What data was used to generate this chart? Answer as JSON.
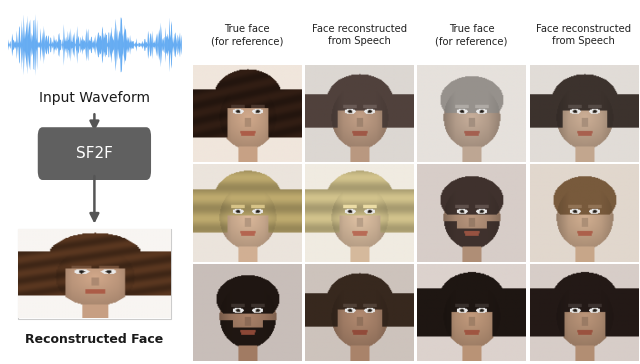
{
  "background_color": "#ffffff",
  "left_panel": {
    "waveform_color_primary": "#2288ee",
    "waveform_color_light": "#aaccff",
    "input_label": "Input Waveform",
    "box_label": "SF2F",
    "box_color": "#606060",
    "box_text_color": "#ffffff",
    "reconstructed_label": "Reconstructed Face",
    "arrow_color": "#555555"
  },
  "right_panel": {
    "col_headers": [
      "True face\n(for reference)",
      "Face reconstructed\nfrom Speech",
      "True face\n(for reference)",
      "Face reconstructed\nfrom Speech"
    ],
    "n_rows": 3,
    "n_cols": 4
  },
  "faces": [
    {
      "skin": [
        210,
        170,
        140
      ],
      "hair": [
        50,
        30,
        20
      ],
      "bg": [
        240,
        230,
        220
      ],
      "gender": "f",
      "hair_style": "long_dark"
    },
    {
      "skin": [
        195,
        160,
        135
      ],
      "hair": [
        80,
        65,
        60
      ],
      "bg": [
        220,
        215,
        210
      ],
      "gender": "f",
      "hair_style": "medium_dark"
    },
    {
      "skin": [
        200,
        175,
        155
      ],
      "hair": [
        150,
        145,
        140
      ],
      "bg": [
        230,
        225,
        220
      ],
      "gender": "m",
      "hair_style": "short_gray"
    },
    {
      "skin": [
        205,
        175,
        150
      ],
      "hair": [
        60,
        50,
        45
      ],
      "bg": [
        225,
        220,
        215
      ],
      "gender": "m",
      "hair_style": "short_dark"
    },
    {
      "skin": [
        220,
        185,
        155
      ],
      "hair": [
        190,
        170,
        110
      ],
      "bg": [
        235,
        228,
        220
      ],
      "gender": "f",
      "hair_style": "blonde_bangs"
    },
    {
      "skin": [
        225,
        195,
        165
      ],
      "hair": [
        210,
        195,
        140
      ],
      "bg": [
        240,
        235,
        225
      ],
      "gender": "f",
      "hair_style": "blonde_long"
    },
    {
      "skin": [
        185,
        150,
        125
      ],
      "hair": [
        70,
        55,
        50
      ],
      "bg": [
        215,
        205,
        200
      ],
      "gender": "m",
      "hair_style": "short_dark_beard"
    },
    {
      "skin": [
        210,
        175,
        145
      ],
      "hair": [
        120,
        90,
        60
      ],
      "bg": [
        225,
        215,
        205
      ],
      "gender": "m",
      "hair_style": "short_brown"
    },
    {
      "skin": [
        170,
        130,
        105
      ],
      "hair": [
        35,
        25,
        20
      ],
      "bg": [
        200,
        190,
        185
      ],
      "gender": "m",
      "hair_style": "dark_beard"
    },
    {
      "skin": [
        178,
        138,
        112
      ],
      "hair": [
        55,
        40,
        30
      ],
      "bg": [
        205,
        195,
        188
      ],
      "gender": "m",
      "hair_style": "dark_stubble"
    },
    {
      "skin": [
        195,
        155,
        125
      ],
      "hair": [
        30,
        22,
        18
      ],
      "bg": [
        220,
        210,
        205
      ],
      "gender": "f",
      "hair_style": "dark_long"
    },
    {
      "skin": [
        188,
        150,
        122
      ],
      "hair": [
        35,
        25,
        22
      ],
      "bg": [
        215,
        205,
        200
      ],
      "gender": "f",
      "hair_style": "dark_side"
    }
  ],
  "figsize": [
    6.4,
    3.64
  ],
  "dpi": 100
}
